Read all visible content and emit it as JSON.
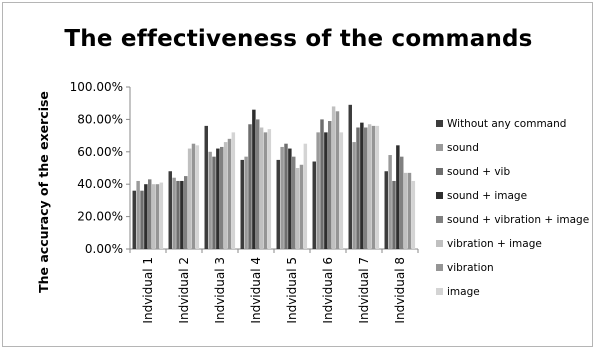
{
  "chart_data": {
    "type": "bar",
    "title": "The effectiveness of the commands",
    "ylabel": "The accuracy of the exercise",
    "xlabel": "",
    "ylim": [
      0,
      1
    ],
    "y_ticks": [
      "0.00%",
      "20.00%",
      "40.00%",
      "60.00%",
      "80.00%",
      "100.00%"
    ],
    "grid": false,
    "legend_position": "right",
    "categories": [
      "Indvidual 1",
      "Indvidual 2",
      "Indvidual 3",
      "Indvidual 4",
      "Indvidual 5",
      "Indvidual 6",
      "Indvidual 7",
      "Indvidual 8"
    ],
    "series": [
      {
        "name": "Without any command",
        "color": "#3c3c3c",
        "values": [
          0.36,
          0.48,
          0.76,
          0.55,
          0.55,
          0.54,
          0.89,
          0.48
        ]
      },
      {
        "name": "sound",
        "color": "#9a9a9a",
        "values": [
          0.42,
          0.44,
          0.6,
          0.57,
          0.63,
          0.72,
          0.66,
          0.58
        ]
      },
      {
        "name": "sound + vib",
        "color": "#6e6e6e",
        "values": [
          0.36,
          0.42,
          0.57,
          0.77,
          0.65,
          0.8,
          0.75,
          0.42
        ]
      },
      {
        "name": "sound + image",
        "color": "#2e2e2e",
        "values": [
          0.4,
          0.42,
          0.62,
          0.86,
          0.62,
          0.72,
          0.78,
          0.64
        ]
      },
      {
        "name": "sound + vibration + image",
        "color": "#808080",
        "values": [
          0.43,
          0.45,
          0.63,
          0.8,
          0.57,
          0.79,
          0.75,
          0.57
        ]
      },
      {
        "name": "vibration + image",
        "color": "#c0c0c0",
        "values": [
          0.4,
          0.62,
          0.66,
          0.75,
          0.5,
          0.88,
          0.77,
          0.47
        ]
      },
      {
        "name": "vibration",
        "color": "#959595",
        "values": [
          0.4,
          0.65,
          0.68,
          0.72,
          0.52,
          0.85,
          0.76,
          0.47
        ]
      },
      {
        "name": "image",
        "color": "#d4d4d4",
        "values": [
          0.41,
          0.64,
          0.72,
          0.74,
          0.65,
          0.72,
          0.76,
          0.42
        ]
      }
    ]
  }
}
